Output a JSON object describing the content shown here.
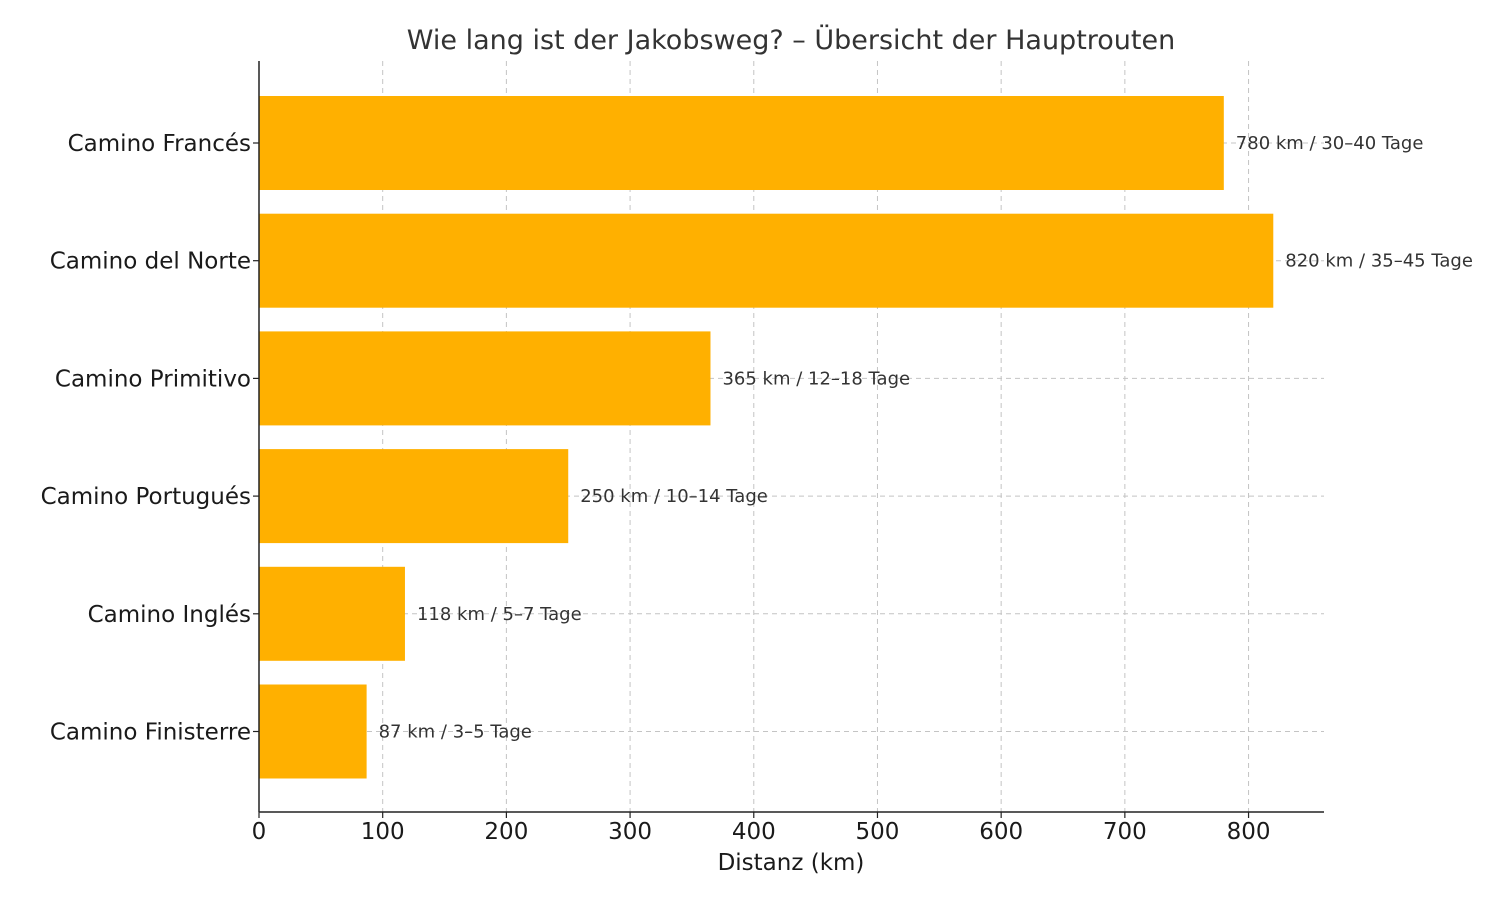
{
  "chart_data": {
    "type": "bar",
    "orientation": "horizontal",
    "title": "Wie lang ist der Jakobsweg? – Übersicht der Hauptrouten",
    "xlabel": "Distanz (km)",
    "ylabel": "",
    "xlim": [
      0,
      861
    ],
    "xticks": [
      0,
      100,
      200,
      300,
      400,
      500,
      600,
      700,
      800
    ],
    "grid": true,
    "bar_color": "#FFB000",
    "categories": [
      "Camino Francés",
      "Camino del Norte",
      "Camino Primitivo",
      "Camino Portugués",
      "Camino Inglés",
      "Camino Finisterre"
    ],
    "values": [
      780,
      820,
      365,
      250,
      118,
      87
    ],
    "data_labels": [
      "780 km / 30–40 Tage",
      "820 km / 35–45 Tage",
      "365 km / 12–18 Tage",
      "250 km / 10–14 Tage",
      "118 km / 5–7 Tage",
      "87 km / 3–5 Tage"
    ]
  }
}
